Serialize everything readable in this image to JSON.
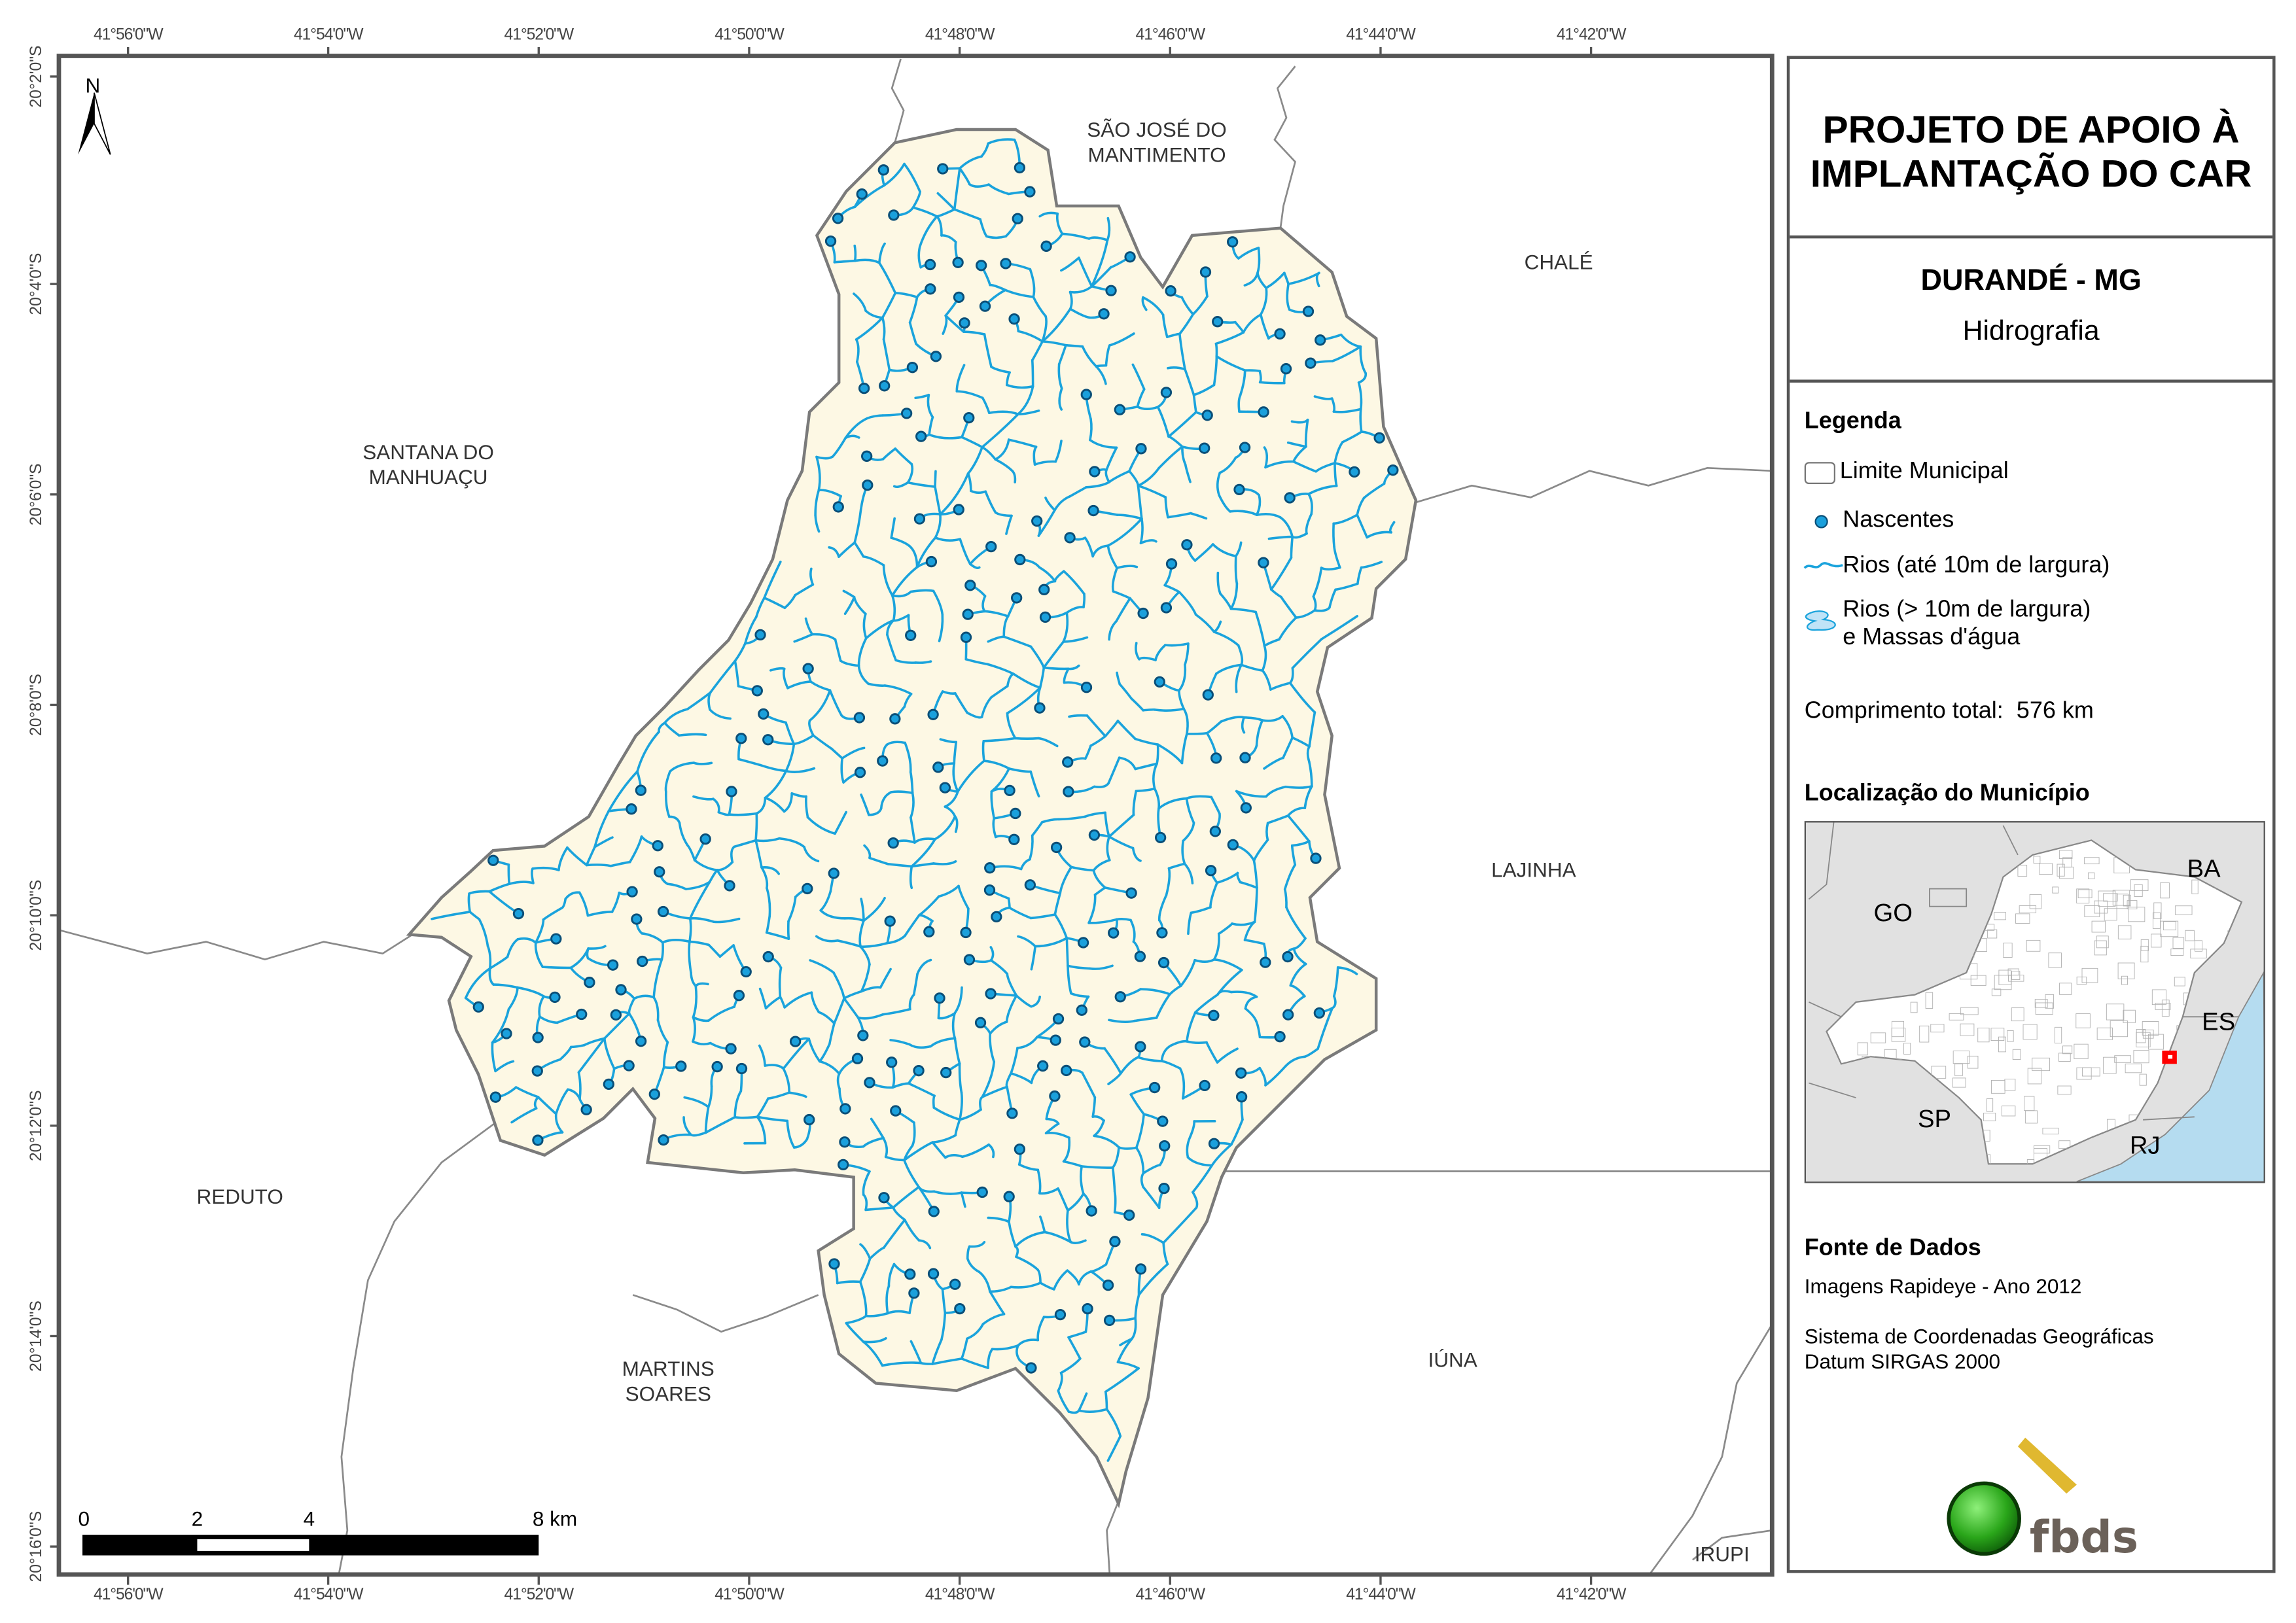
{
  "header": {
    "title_line1": "PROJETO DE APOIO À",
    "title_line2": "IMPLANTAÇÃO DO CAR",
    "municipality": "DURANDÉ - MG",
    "theme": "Hidrografia"
  },
  "legend": {
    "title": "Legenda",
    "items": [
      {
        "label": "Limite Municipal",
        "icon": "municipal-boundary-swatch"
      },
      {
        "label": "Nascentes",
        "icon": "spring-dot"
      },
      {
        "label": "Rios (até 10m de largura)",
        "icon": "river-line"
      },
      {
        "label_line1": "Rios (> 10m de largura)",
        "label_line2": "e Massas d'água",
        "icon": "water-body-swatch"
      }
    ],
    "total_length": "Comprimento total:  576 km"
  },
  "location": {
    "title": "Localização do Município",
    "states": [
      "GO",
      "BA",
      "ES",
      "SP",
      "RJ"
    ]
  },
  "sources": {
    "title": "Fonte de Dados",
    "imagery": "Imagens Rapideye - Ano 2012",
    "crs": "Sistema de Coordenadas Geográficas",
    "datum": "Datum SIRGAS 2000"
  },
  "logo": {
    "text": "fbds"
  },
  "map": {
    "north_label": "N",
    "lon_ticks": [
      "41°56'0\"W",
      "41°54'0\"W",
      "41°52'0\"W",
      "41°50'0\"W",
      "41°48'0\"W",
      "41°46'0\"W",
      "41°44'0\"W",
      "41°42'0\"W"
    ],
    "lat_ticks": [
      "20°2'0\"S",
      "20°4'0\"S",
      "20°6'0\"S",
      "20°8'0\"S",
      "20°10'0\"S",
      "20°12'0\"S",
      "20°14'0\"S",
      "20°16'0\"S"
    ],
    "places": [
      {
        "line1": "SÃO JOSÉ DO",
        "line2": "MANTIMENTO"
      },
      {
        "line1": "CHALÉ",
        "line2": ""
      },
      {
        "line1": "SANTANA DO",
        "line2": "MANHUAÇU"
      },
      {
        "line1": "LAJINHA",
        "line2": ""
      },
      {
        "line1": "REDUTO",
        "line2": ""
      },
      {
        "line1": "MARTINS",
        "line2": "SOARES"
      },
      {
        "line1": "IÚNA",
        "line2": ""
      },
      {
        "line1": "IRUPI",
        "line2": ""
      }
    ],
    "scale_labels": [
      "0",
      "2",
      "4",
      "8 km"
    ]
  },
  "colors": {
    "municipality_fill": "#fdf8e4",
    "river": "#1aa3dc",
    "spring_fill": "#1aa0dc",
    "spring_stroke": "#0a4f78",
    "boundary": "#808080",
    "ocean": "#b5dcf0",
    "highlight": "#ff0000"
  }
}
